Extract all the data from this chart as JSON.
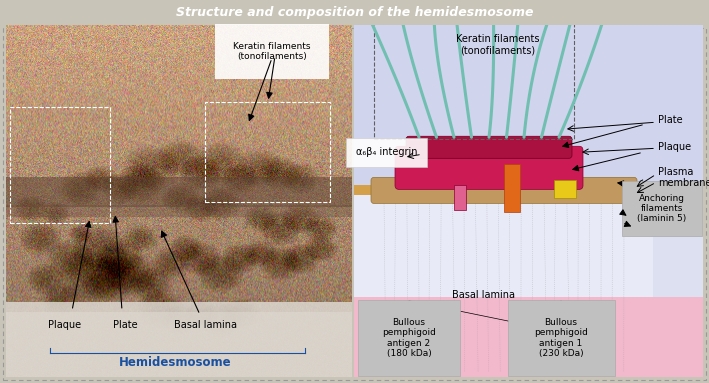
{
  "title": "Structure and composition of the hemidesmosome",
  "title_bg": "#3a6080",
  "title_color": "#ffffff",
  "outer_bg": "#c8c4b8",
  "left_em_bg": "#b0a090",
  "right_panel_bg": "#d8daf0",
  "cell_bg": "#c8cce8",
  "basal_lamina_color": "#f0b0c8",
  "plasma_membrane_color": "#d4a04a",
  "plaque_color": "#cc1a55",
  "plate_color": "#aa1040",
  "keratin_color": "#70bfb0",
  "orange_color": "#e06818",
  "yellow_color": "#e8c818",
  "rod_color": "#c09860",
  "gray_box_color": "#c0c0c0",
  "integrin_label": "α₆β₄ integrin",
  "antigen2_label": "Bullous\npemphigoid\nantigen 2\n(180 kDa)",
  "antigen1_label": "Bullous\npemphigoid\nantigen 1\n(230 kDa)",
  "anchoring_label": "Anchoring\nfilaments\n(laminin 5)",
  "plate_label": "Plate",
  "plaque_label": "Plaque",
  "plasma_label": "Plasma\nmembrane",
  "keratin_label": "Keratin filaments\n(tonofilaments)",
  "basal_label": "Basal lamina",
  "hemi_label": "Hemidesmosome",
  "left_plaque_label": "Plaque",
  "left_plate_label": "Plate",
  "left_basal_label": "Basal lamina",
  "left_keratin_label": "Keratin filaments\n(tonofilaments)"
}
